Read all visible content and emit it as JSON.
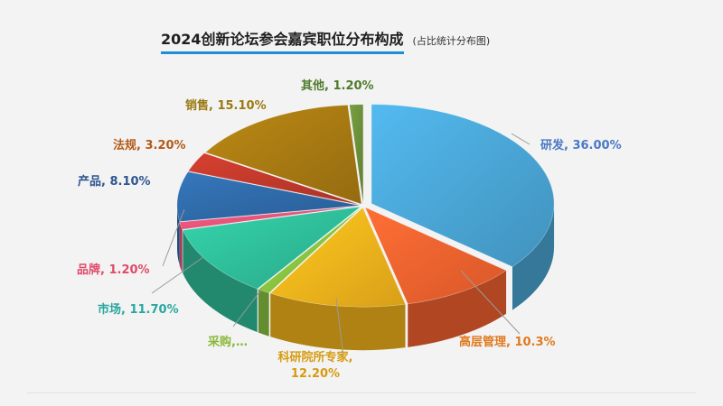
{
  "title": "2024创新论坛参会嘉宾职位分布构成",
  "subtitle": "(占比统计分布图)",
  "chart_data": {
    "type": "pie",
    "title": "2024创新论坛参会嘉宾职位分布构成",
    "subtitle": "(占比统计分布图)",
    "categories": [
      "研发",
      "高层管理",
      "科研院所专家",
      "采购",
      "市场",
      "品牌",
      "产品",
      "法规",
      "销售",
      "其他"
    ],
    "values": [
      36.0,
      10.3,
      12.2,
      1.1,
      11.7,
      1.2,
      8.1,
      3.2,
      15.1,
      1.2
    ],
    "labels": [
      "研发, 36.00%",
      "高层管理, 10.3%",
      "科研院所专家,\n12.20%",
      "采购,…",
      "市场, 11.70%",
      "品牌, 1.20%",
      "产品, 8.10%",
      "法规, 3.20%",
      "销售, 15.10%",
      "其他, 1.20%"
    ],
    "colors": [
      "#4aa6d6",
      "#f5632f",
      "#f5b51c",
      "#8ac440",
      "#2fbe9a",
      "#e8547a",
      "#2f6aa8",
      "#c0392b",
      "#a87a12",
      "#6b8f3a"
    ],
    "label_colors": [
      "#4a79c4",
      "#e07a20",
      "#d69b10",
      "#8ab83a",
      "#2aa7a0",
      "#e04b6a",
      "#2f5690",
      "#b25a17",
      "#9a7a12",
      "#4e7a2a"
    ],
    "style": "3d-exploded"
  }
}
